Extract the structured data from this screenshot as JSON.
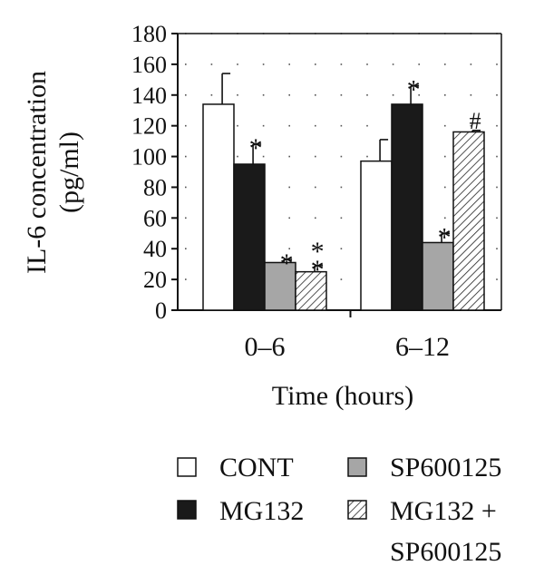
{
  "chart_data": {
    "type": "bar",
    "ylabel_line1": "IL-6 concentration",
    "ylabel_line2": "(pg/ml)",
    "xlabel": "Time (hours)",
    "categories": [
      "0–6",
      "6–12"
    ],
    "ylim": [
      0,
      180
    ],
    "yticks": [
      "0",
      "20",
      "40",
      "60",
      "80",
      "100",
      "120",
      "140",
      "160",
      "180"
    ],
    "grid": true,
    "legend_position": "bottom",
    "series": [
      {
        "name": "CONT",
        "values": [
          134,
          97
        ],
        "errors": [
          20,
          14
        ],
        "marks": [
          "",
          ""
        ],
        "fill": "#ffffff",
        "pattern": "none"
      },
      {
        "name": "MG132",
        "values": [
          95,
          134
        ],
        "errors": [
          13,
          12
        ],
        "marks": [
          "*",
          "*"
        ],
        "fill": "#1a1a1a",
        "pattern": "none"
      },
      {
        "name": "SP600125",
        "values": [
          31,
          44
        ],
        "errors": [
          2,
          6
        ],
        "marks": [
          "*",
          "*"
        ],
        "fill": "#a6a6a6",
        "pattern": "none"
      },
      {
        "name": "MG132 + SP600125",
        "name_line1": "MG132 +",
        "name_line2": "SP600125",
        "values": [
          25,
          116
        ],
        "errors": [
          4,
          1
        ],
        "marks": [
          "**",
          "#"
        ],
        "fill": "#ffffff",
        "pattern": "hatch"
      }
    ]
  }
}
